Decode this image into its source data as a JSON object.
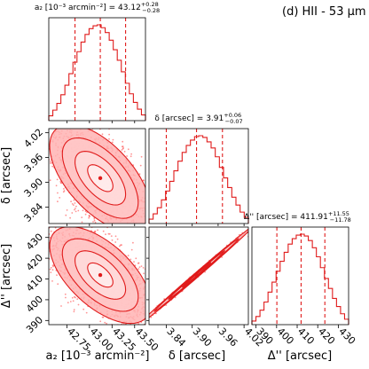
{
  "figure": {
    "corner_label": "(d) HII - 53 μm"
  },
  "chart_data": {
    "type": "corner",
    "title": "(d) HII - 53 μm",
    "parameters": [
      {
        "name": "a2",
        "axis_label": "a₂ [10⁻³ arcmin⁻²]",
        "panel_title": "a₂ [10⁻³ arcmin⁻²] = 43.12",
        "median": 43.12,
        "err_plus": 0.28,
        "err_minus": 0.28,
        "err_plus_label": "+0.28",
        "err_minus_label": "−0.28",
        "quantiles": [
          42.84,
          43.12,
          43.4
        ],
        "range": [
          42.55,
          43.62
        ],
        "ticks": [
          42.75,
          43.0,
          43.25,
          43.5
        ],
        "tick_labels": [
          "42.75",
          "43.00",
          "43.25",
          "43.50"
        ]
      },
      {
        "name": "delta",
        "axis_label": "δ [arcsec]",
        "panel_title": "δ [arcsec] = 3.91",
        "median": 3.91,
        "err_plus": 0.06,
        "err_minus": 0.07,
        "err_plus_label": "+0.06",
        "err_minus_label": "−0.07",
        "quantiles": [
          3.84,
          3.91,
          3.97
        ],
        "range": [
          3.8,
          4.03
        ],
        "ticks": [
          3.84,
          3.9,
          3.96,
          4.02
        ],
        "tick_labels": [
          "3.84",
          "3.90",
          "3.96",
          "4.02"
        ]
      },
      {
        "name": "Delta",
        "axis_label": "Δ'' [arcsec]",
        "panel_title": "Δ'' [arcsec] = 411.91",
        "median": 411.91,
        "err_plus": 11.55,
        "err_minus": 11.78,
        "err_plus_label": "+11.55",
        "err_minus_label": "−11.78",
        "quantiles": [
          400.13,
          411.91,
          423.46
        ],
        "range": [
          388,
          435
        ],
        "ticks": [
          390,
          400,
          410,
          420,
          430
        ],
        "tick_labels": [
          "390",
          "400",
          "410",
          "420",
          "430"
        ]
      }
    ],
    "histograms": [
      [
        0.05,
        0.11,
        0.18,
        0.27,
        0.37,
        0.49,
        0.61,
        0.72,
        0.82,
        0.9,
        0.96,
        0.99,
        1.0,
        0.97,
        0.92,
        0.84,
        0.74,
        0.63,
        0.51,
        0.39,
        0.28,
        0.19,
        0.12,
        0.06
      ],
      [
        0.05,
        0.11,
        0.18,
        0.27,
        0.37,
        0.48,
        0.6,
        0.71,
        0.81,
        0.89,
        0.95,
        0.99,
        1.0,
        0.98,
        0.93,
        0.86,
        0.76,
        0.64,
        0.52,
        0.41,
        0.3,
        0.21,
        0.13,
        0.07
      ],
      [
        0.04,
        0.09,
        0.16,
        0.25,
        0.36,
        0.47,
        0.59,
        0.7,
        0.8,
        0.89,
        0.95,
        0.99,
        1.0,
        0.98,
        0.93,
        0.85,
        0.75,
        0.63,
        0.51,
        0.4,
        0.29,
        0.2,
        0.12,
        0.06
      ]
    ],
    "joint": [
      {
        "row": 1,
        "col": 0,
        "correlation": -0.6,
        "contour_sigmas": [
          0.5,
          1.0,
          1.5,
          2.0
        ]
      },
      {
        "row": 2,
        "col": 0,
        "correlation": -0.6,
        "contour_sigmas": [
          0.5,
          1.0,
          1.5,
          2.0
        ]
      },
      {
        "row": 2,
        "col": 1,
        "correlation": 0.998,
        "contour_sigmas": [
          0.5,
          1.0,
          1.5,
          2.0
        ]
      }
    ],
    "colors": {
      "samples": "#ff3b3b",
      "lines": "#e01b1b",
      "fill": "#ffd9d9"
    }
  }
}
